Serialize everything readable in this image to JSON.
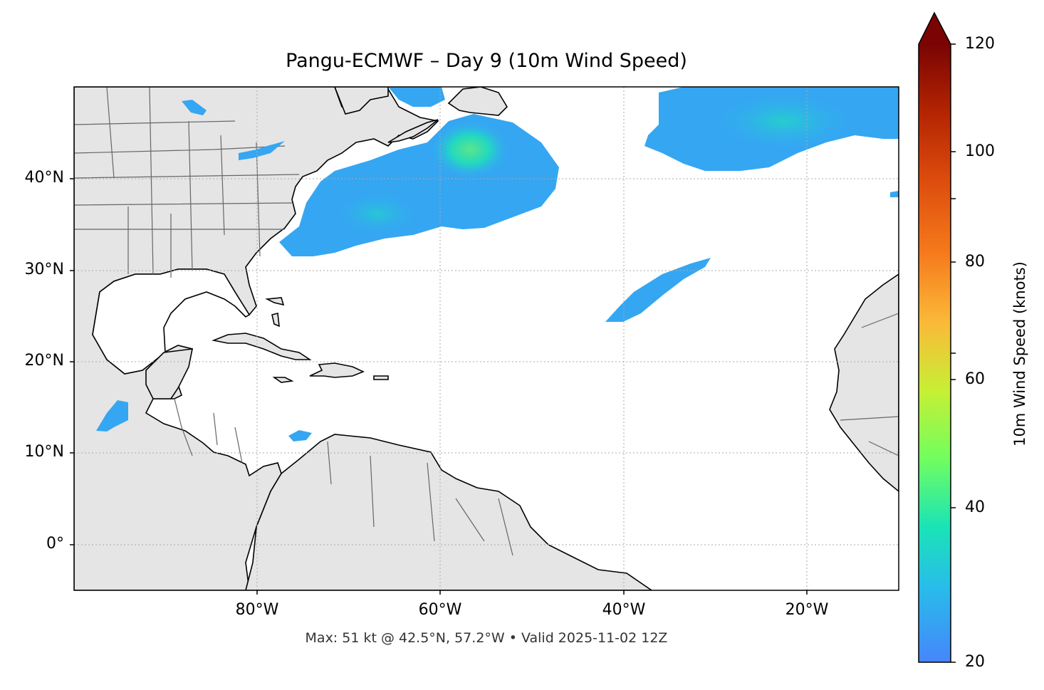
{
  "title": "Pangu-ECMWF – Day 9 (10m Wind Speed)",
  "footer": "Max: 51 kt @ 42.5°N, 57.2°W • Valid 2025-11-02 12Z",
  "map": {
    "extent_lon": [
      -100,
      -10
    ],
    "extent_lat": [
      -5,
      50
    ],
    "lat_ticks": [
      "40°N",
      "30°N",
      "20°N",
      "10°N",
      "0°"
    ],
    "lon_ticks": [
      "80°W",
      "60°W",
      "40°W",
      "20°W"
    ],
    "gridlines": true,
    "land_color": "#e5e5e5",
    "ocean_color": "#ffffff"
  },
  "colorbar": {
    "label": "10m Wind Speed (knots)",
    "range": [
      20,
      120
    ],
    "ticks": [
      "20",
      "40",
      "60",
      "80",
      "100",
      "120"
    ],
    "colormap": "turbo",
    "extend": "max"
  },
  "wind_max": {
    "value_kt": 51,
    "lat": 42.5,
    "lon": -57.2
  }
}
